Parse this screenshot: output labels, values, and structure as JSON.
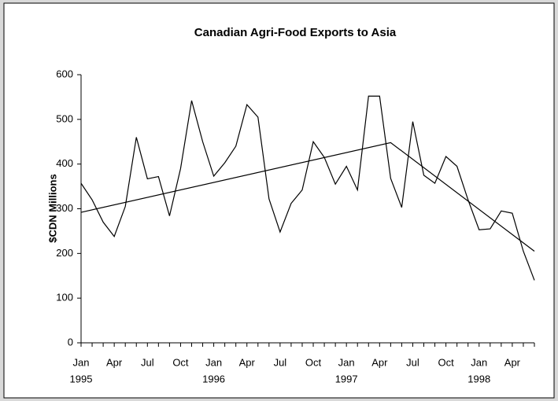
{
  "chart_data": {
    "type": "line",
    "title": "Canadian Agri-Food Exports to Asia",
    "y_label": "$CDN Millions",
    "categories": [
      "Jan",
      null,
      null,
      "Apr",
      null,
      null,
      "Jul",
      null,
      null,
      "Oct",
      null,
      null,
      "Jan",
      null,
      null,
      "Apr",
      null,
      null,
      "Jul",
      null,
      null,
      "Oct",
      null,
      null,
      "Jan",
      null,
      null,
      "Apr",
      null,
      null,
      "Jul",
      null,
      null,
      "Oct",
      null,
      null,
      "Jan",
      null,
      null,
      "Apr",
      null,
      null
    ],
    "year_labels": [
      "1995",
      null,
      null,
      null,
      null,
      null,
      null,
      null,
      null,
      null,
      null,
      null,
      "1996",
      null,
      null,
      null,
      null,
      null,
      null,
      null,
      null,
      null,
      null,
      null,
      "1997",
      null,
      null,
      null,
      null,
      null,
      null,
      null,
      null,
      null,
      null,
      null,
      "1998",
      null,
      null,
      null,
      null,
      null
    ],
    "series": [
      {
        "color": "#000000",
        "values": [
          357,
          320,
          270,
          238,
          305,
          460,
          367,
          372,
          284,
          390,
          542,
          450,
          373,
          403,
          440,
          533,
          505,
          322,
          248,
          312,
          342,
          450,
          415,
          355,
          395,
          342,
          552,
          552,
          368,
          303,
          495,
          375,
          357,
          417,
          395,
          320,
          253,
          255,
          295,
          290,
          205,
          140
        ]
      }
    ],
    "trend": {
      "color": "#000000",
      "x": [
        0,
        28,
        41
      ],
      "values": [
        292,
        448,
        205
      ]
    },
    "ylim": [
      0,
      600
    ],
    "yticks": [
      0,
      100,
      200,
      300,
      400,
      500,
      600
    ],
    "grid": false
  }
}
